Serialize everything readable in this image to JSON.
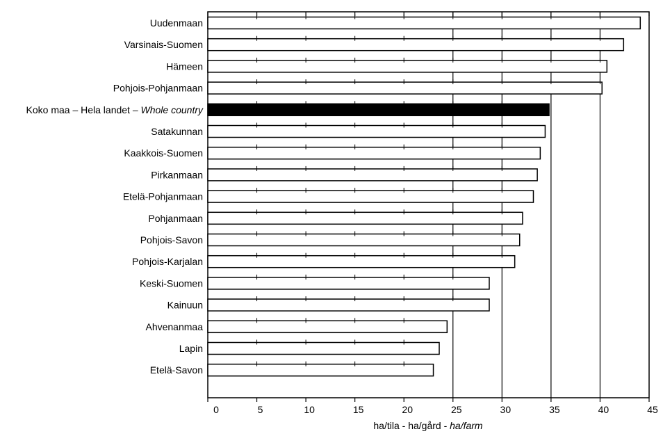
{
  "chart_data": {
    "type": "bar",
    "orientation": "horizontal",
    "categories": [
      "Uudenmaan",
      "Varsinais-Suomen",
      "Hämeen",
      "Pohjois-Pohjanmaan",
      "Koko maa – Hela landet – Whole country",
      "Satakunnan",
      "Kaakkois-Suomen",
      "Pirkanmaan",
      "Etelä-Pohjanmaan",
      "Pohjanmaan",
      "Pohjois-Savon",
      "Pohjois-Karjalan",
      "Keski-Suomen",
      "Kainuun",
      "Ahvenanmaa",
      "Lapin",
      "Etelä-Savon"
    ],
    "values": [
      44.1,
      42.4,
      40.7,
      40.2,
      34.8,
      34.4,
      33.9,
      33.6,
      33.2,
      32.1,
      31.8,
      31.3,
      28.7,
      28.7,
      24.4,
      23.6,
      23.0
    ],
    "highlighted_index": 4,
    "xlabel": "ha/tila - ha/gård - ha/farm",
    "ylabel": "",
    "xlim": [
      0,
      45
    ],
    "xticks": [
      0,
      5,
      10,
      15,
      20,
      25,
      30,
      35,
      40,
      45
    ],
    "grid": "vertical lines at 25, 30, 35, 40",
    "colors": {
      "bar_fill": "#ffffff",
      "highlight_fill": "#000000",
      "stroke": "#000000"
    }
  }
}
